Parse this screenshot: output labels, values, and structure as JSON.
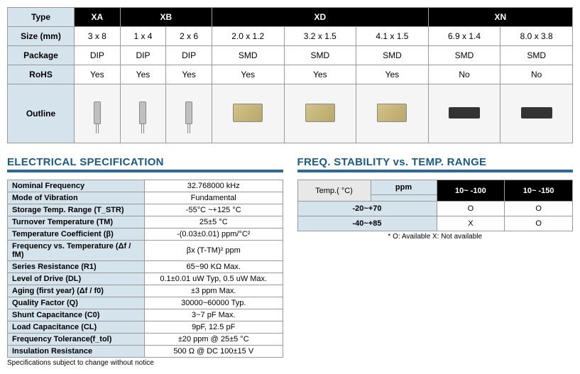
{
  "mainTable": {
    "rowHeaders": [
      "Type",
      "Size (mm)",
      "Package",
      "RoHS",
      "Outline"
    ],
    "typeHeaders": [
      "XA",
      "XB",
      "XB",
      "XD",
      "XD",
      "XD",
      "XN",
      "XN"
    ],
    "typeSpans": [
      1,
      2,
      3,
      2
    ],
    "typeLabels": [
      "XA",
      "XB",
      "XD",
      "XN"
    ],
    "size": [
      "3 x 8",
      "1 x 4",
      "2 x 6",
      "2.0 x 1.2",
      "3.2 x 1.5",
      "4.1 x 1.5",
      "6.9 x 1.4",
      "8.0 x 3.8"
    ],
    "package": [
      "DIP",
      "DIP",
      "DIP",
      "SMD",
      "SMD",
      "SMD",
      "SMD",
      "SMD"
    ],
    "rohs": [
      "Yes",
      "Yes",
      "Yes",
      "Yes",
      "Yes",
      "Yes",
      "No",
      "No"
    ]
  },
  "sections": {
    "elec": "ELECTRICAL SPECIFICATION",
    "freq": "FREQ. STABILITY vs. TEMP. RANGE"
  },
  "specs": [
    {
      "label": "Nominal Frequency",
      "value": "32.768000 kHz"
    },
    {
      "label": "Mode of Vibration",
      "value": "Fundamental"
    },
    {
      "label": "Storage Temp. Range (T_STR)",
      "value": "-55°C ~+125 °C"
    },
    {
      "label": "Turnover Temperature (TM)",
      "value": "25±5 °C"
    },
    {
      "label": "Temperature Coefficient (β)",
      "value": "-(0.03±0.01) ppm/°C²"
    },
    {
      "label": "Frequency vs. Temperature (Δf / fM)",
      "value": "βx (T-TM)² ppm"
    },
    {
      "label": "Series Resistance (R1)",
      "value": "65~90 KΩ  Max."
    },
    {
      "label": "Level of Drive (DL)",
      "value": "0.1±0.01 uW Typ, 0.5 uW Max."
    },
    {
      "label": "Aging (first year) (Δf / f0)",
      "value": "±3 ppm Max."
    },
    {
      "label": "Quality Factor (Q)",
      "value": "30000~60000 Typ."
    },
    {
      "label": "Shunt Capacitance (C0)",
      "value": "3~7 pF Max."
    },
    {
      "label": "Load Capacitance (CL)",
      "value": "9pF, 12.5 pF"
    },
    {
      "label": "Frequency Tolerance(f_tol)",
      "value": "±20 ppm @ 25±5 °C"
    },
    {
      "label": "Insulation Resistance",
      "value": "500 Ω @ DC 100±15 V"
    }
  ],
  "specNote": "Specifications subject to change without notice",
  "stability": {
    "ppmLabel": "ppm",
    "tempLabel": "Temp.( °C)",
    "cols": [
      "10~ -100",
      "10~ -150"
    ],
    "rows": [
      {
        "temp": "-20~+70",
        "vals": [
          "O",
          "O"
        ]
      },
      {
        "temp": "-40~+85",
        "vals": [
          "X",
          "O"
        ]
      }
    ],
    "legend": "* O: Available  X: Not available"
  }
}
